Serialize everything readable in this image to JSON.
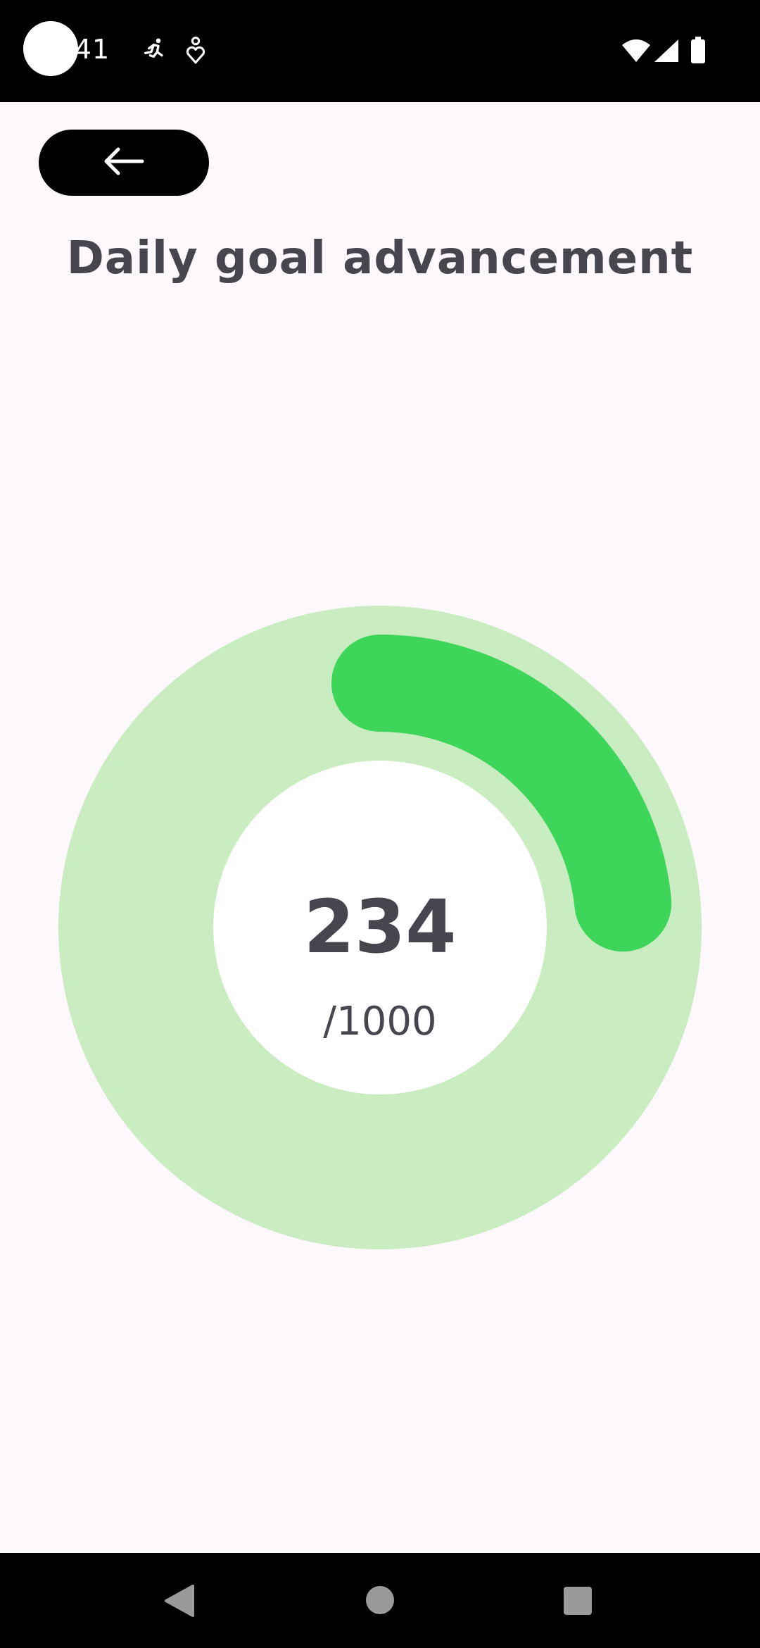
{
  "status_bar": {
    "time": ":41",
    "icons": [
      "run-icon",
      "heart-pin-icon",
      "wifi-icon",
      "signal-icon",
      "battery-icon"
    ]
  },
  "header": {
    "back_icon": "arrow-left-icon",
    "title": "Daily goal advancement"
  },
  "progress": {
    "value": "234",
    "goal": "/1000",
    "fraction": 0.234,
    "colors": {
      "track": "#c9ecc0",
      "fill": "#3ed65a",
      "center": "#ffffff",
      "text": "#47464f"
    }
  },
  "nav_bar": {
    "buttons": [
      "back-triangle-icon",
      "home-circle-icon",
      "recents-square-icon"
    ]
  }
}
